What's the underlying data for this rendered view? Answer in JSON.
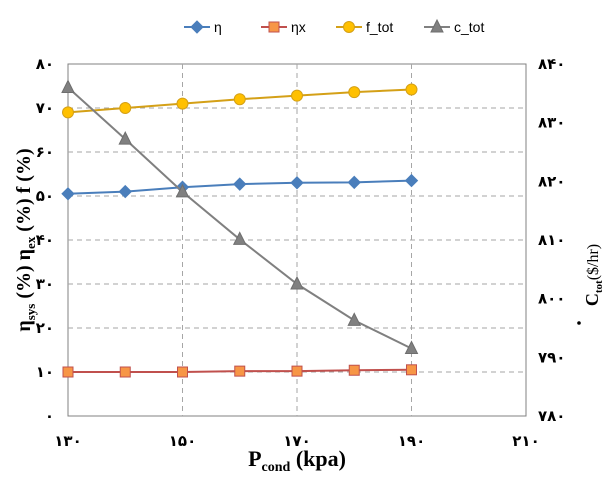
{
  "chart_data": {
    "type": "line",
    "title": "",
    "xlabel": "P_cond (kpa)",
    "ylabel_left": "η_sys (%) η_ex (%) f (%)",
    "ylabel_right": "Ċ_tot ($/hr)",
    "xlim": [
      130,
      210
    ],
    "xticks": [
      130,
      150,
      170,
      190,
      210
    ],
    "xtick_labels": [
      "۱۳۰",
      "۱۵۰",
      "۱۷۰",
      "۱۹۰",
      "۲۱۰"
    ],
    "ylim_left": [
      0,
      80
    ],
    "yticks_left": [
      0,
      10,
      20,
      30,
      40,
      50,
      60,
      70,
      80
    ],
    "ytick_labels_left": [
      "۰",
      "۱۰",
      "۲۰",
      "۳۰",
      "۴۰",
      "۵۰",
      "۶۰",
      "۷۰",
      "۸۰"
    ],
    "ylim_right": [
      780,
      840
    ],
    "yticks_right": [
      780,
      790,
      800,
      810,
      820,
      830,
      840
    ],
    "ytick_labels_right": [
      "۷۸۰",
      "۷۹۰",
      "۸۰۰",
      "۸۱۰",
      "۸۲۰",
      "۸۳۰",
      "۸۴۰"
    ],
    "grid": true,
    "legend_position": "top",
    "x": [
      130,
      140,
      150,
      160,
      170,
      180,
      190
    ],
    "series": [
      {
        "name": "η",
        "axis": "left",
        "color": "#4a7ebb",
        "marker": "diamond",
        "values": [
          50.5,
          51.0,
          52.0,
          52.7,
          53.0,
          53.1,
          53.5
        ]
      },
      {
        "name": "ηx",
        "axis": "left",
        "color": "#c0504d",
        "marker_fill": "#f79646",
        "marker": "square",
        "values": [
          10.0,
          10.0,
          10.0,
          10.2,
          10.2,
          10.4,
          10.5
        ]
      },
      {
        "name": "f_tot",
        "axis": "left",
        "color": "#d4a017",
        "marker_fill": "#ffc000",
        "marker": "circle",
        "values": [
          69.0,
          70.0,
          71.0,
          72.0,
          72.8,
          73.6,
          74.2
        ]
      },
      {
        "name": "c_tot",
        "axis": "right",
        "color": "#808080",
        "marker": "triangle",
        "values": [
          836.0,
          827.2,
          818.2,
          810.1,
          802.5,
          796.3,
          791.5
        ]
      }
    ]
  }
}
